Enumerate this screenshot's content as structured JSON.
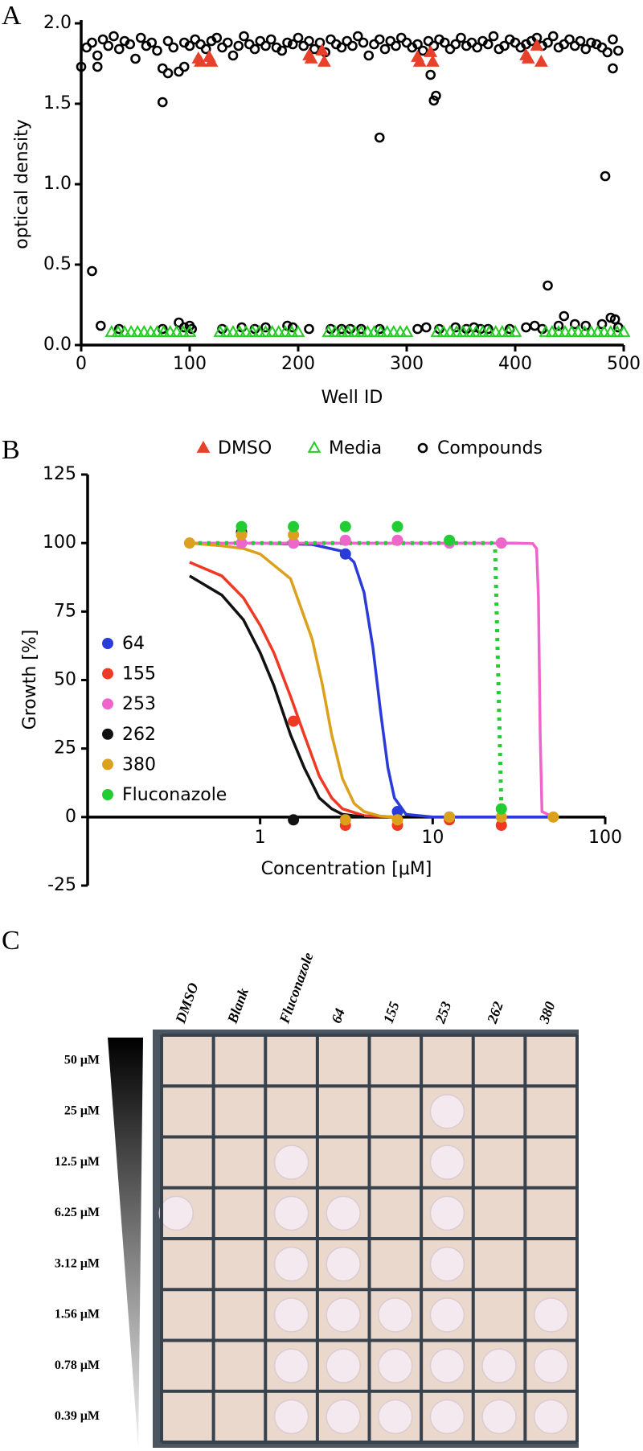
{
  "chart_data": [
    {
      "type": "scatter",
      "panel": "A",
      "xlabel": "Well ID",
      "ylabel": "optical density",
      "xlim": [
        0,
        500
      ],
      "ylim": [
        0,
        2
      ],
      "xticks": [
        0,
        100,
        200,
        300,
        400,
        500
      ],
      "yticks": [
        {
          "value": 0,
          "label": "0.0"
        },
        0.5,
        {
          "value": 1,
          "label": "1.0"
        },
        1.5,
        {
          "value": 2,
          "label": "2.0"
        }
      ],
      "series": [
        {
          "name": "DMSO",
          "color": "#e8402a",
          "marker": "triangle",
          "filled": true,
          "x": [
            108,
            110,
            118,
            120,
            210,
            212,
            222,
            224,
            310,
            312,
            322,
            324,
            410,
            412,
            420,
            424
          ],
          "values": [
            1.78,
            1.76,
            1.79,
            1.76,
            1.8,
            1.78,
            1.83,
            1.76,
            1.79,
            1.76,
            1.82,
            1.76,
            1.8,
            1.78,
            1.86,
            1.76
          ]
        },
        {
          "name": "Media",
          "color": "#22cc22",
          "marker": "triangle",
          "filled": false,
          "x": [
            28,
            34,
            40,
            46,
            52,
            58,
            64,
            70,
            76,
            82,
            88,
            94,
            100,
            128,
            134,
            140,
            146,
            152,
            158,
            164,
            170,
            176,
            182,
            188,
            194,
            200,
            228,
            234,
            240,
            246,
            252,
            258,
            264,
            270,
            276,
            282,
            288,
            294,
            300,
            328,
            334,
            340,
            346,
            352,
            358,
            364,
            370,
            376,
            382,
            388,
            394,
            400,
            428,
            434,
            440,
            446,
            452,
            458,
            464,
            470,
            476,
            482,
            488,
            494,
            500
          ],
          "values": [
            0.08,
            0.08,
            0.08,
            0.08,
            0.08,
            0.08,
            0.08,
            0.08,
            0.08,
            0.08,
            0.08,
            0.08,
            0.08,
            0.08,
            0.08,
            0.08,
            0.08,
            0.08,
            0.08,
            0.08,
            0.08,
            0.08,
            0.08,
            0.08,
            0.08,
            0.08,
            0.08,
            0.08,
            0.08,
            0.08,
            0.08,
            0.08,
            0.08,
            0.08,
            0.08,
            0.08,
            0.08,
            0.08,
            0.08,
            0.08,
            0.08,
            0.08,
            0.08,
            0.08,
            0.08,
            0.08,
            0.08,
            0.08,
            0.08,
            0.08,
            0.08,
            0.08,
            0.08,
            0.08,
            0.08,
            0.08,
            0.08,
            0.08,
            0.08,
            0.08,
            0.08,
            0.08,
            0.08,
            0.08,
            0.08
          ]
        },
        {
          "name": "Compounds",
          "color": "#000000",
          "marker": "circle",
          "filled": false,
          "x": [
            0,
            5,
            10,
            15,
            20,
            25,
            30,
            35,
            40,
            45,
            50,
            55,
            60,
            65,
            70,
            75,
            80,
            85,
            90,
            95,
            100,
            105,
            110,
            115,
            120,
            125,
            130,
            135,
            140,
            145,
            150,
            155,
            160,
            165,
            170,
            175,
            180,
            185,
            190,
            195,
            200,
            205,
            210,
            215,
            220,
            225,
            230,
            235,
            240,
            245,
            250,
            255,
            260,
            265,
            270,
            275,
            280,
            285,
            290,
            295,
            300,
            305,
            310,
            315,
            320,
            325,
            330,
            335,
            340,
            345,
            350,
            355,
            360,
            365,
            370,
            375,
            380,
            385,
            390,
            395,
            400,
            405,
            410,
            415,
            420,
            425,
            430,
            435,
            440,
            445,
            450,
            455,
            460,
            465,
            470,
            475,
            480,
            485,
            490,
            495,
            10,
            15,
            75,
            80,
            95,
            275,
            322,
            325,
            327,
            483,
            490,
            18,
            35,
            75,
            90,
            95,
            100,
            102,
            130,
            148,
            160,
            170,
            190,
            195,
            210,
            230,
            240,
            248,
            258,
            275,
            310,
            318,
            330,
            345,
            355,
            362,
            368,
            375,
            395,
            410,
            418,
            425,
            430,
            440,
            445,
            455,
            465,
            480,
            488,
            492,
            495
          ],
          "values": [
            1.73,
            1.85,
            1.88,
            1.8,
            1.9,
            1.86,
            1.92,
            1.84,
            1.89,
            1.87,
            1.78,
            1.91,
            1.86,
            1.88,
            1.83,
            1.72,
            1.89,
            1.85,
            1.7,
            1.88,
            1.86,
            1.9,
            1.87,
            1.84,
            1.89,
            1.91,
            1.85,
            1.88,
            1.8,
            1.86,
            1.92,
            1.87,
            1.84,
            1.89,
            1.86,
            1.9,
            1.85,
            1.83,
            1.88,
            1.87,
            1.91,
            1.86,
            1.89,
            1.84,
            1.88,
            1.82,
            1.9,
            1.87,
            1.85,
            1.89,
            1.86,
            1.92,
            1.88,
            1.8,
            1.87,
            1.9,
            1.84,
            1.89,
            1.86,
            1.91,
            1.88,
            1.85,
            1.87,
            1.83,
            1.89,
            1.86,
            1.9,
            1.88,
            1.84,
            1.87,
            1.91,
            1.86,
            1.88,
            1.85,
            1.89,
            1.87,
            1.92,
            1.84,
            1.86,
            1.9,
            1.88,
            1.85,
            1.87,
            1.89,
            1.91,
            1.86,
            1.88,
            1.92,
            1.85,
            1.87,
            1.9,
            1.86,
            1.89,
            1.84,
            1.88,
            1.87,
            1.85,
            1.82,
            1.9,
            1.83,
            0.46,
            1.73,
            1.51,
            1.69,
            1.73,
            1.29,
            1.68,
            1.52,
            1.55,
            1.05,
            1.72,
            0.12,
            0.1,
            0.1,
            0.14,
            0.11,
            0.12,
            0.1,
            0.1,
            0.11,
            0.1,
            0.11,
            0.12,
            0.11,
            0.1,
            0.1,
            0.1,
            0.1,
            0.1,
            0.1,
            0.1,
            0.11,
            0.1,
            0.11,
            0.1,
            0.11,
            0.1,
            0.1,
            0.1,
            0.11,
            0.12,
            0.1,
            0.37,
            0.12,
            0.18,
            0.13,
            0.12,
            0.13,
            0.17,
            0.16,
            0.11
          ]
        }
      ]
    },
    {
      "type": "dose_response",
      "panel": "B",
      "xlabel": "Concentration [μM]",
      "ylabel": "Growth [%]",
      "xscale": "log",
      "xlim": [
        0.1,
        100
      ],
      "ylim": [
        -25,
        125
      ],
      "xticks": [
        1,
        10,
        100
      ],
      "yticks": [
        -25,
        0,
        25,
        50,
        75,
        100,
        125
      ],
      "series": [
        {
          "name": "64",
          "color": "#2a3bd9",
          "x": [
            1.56,
            3.12,
            6.25,
            12.5
          ],
          "values": [
            100,
            96,
            2,
            0
          ],
          "curve_x": [
            0.39,
            1,
            2,
            3,
            3.5,
            4,
            4.5,
            5,
            5.5,
            6,
            7,
            10,
            50
          ],
          "curve_y": [
            100,
            100,
            99.5,
            97,
            93,
            82,
            62,
            38,
            18,
            7,
            1,
            0,
            0
          ]
        },
        {
          "name": "155",
          "color": "#ee3a24",
          "x": [
            1.56,
            3.12,
            6.25,
            12.5,
            25
          ],
          "values": [
            35,
            -3,
            -3,
            -1,
            -3
          ],
          "curve_x": [
            0.39,
            0.6,
            0.8,
            1,
            1.2,
            1.5,
            1.8,
            2.2,
            2.6,
            3,
            4,
            6
          ],
          "curve_y": [
            93,
            88,
            80,
            70,
            60,
            44,
            30,
            15,
            7,
            3,
            0.5,
            0
          ]
        },
        {
          "name": "253",
          "color": "#ee66cc",
          "x": [
            0.78,
            1.56,
            3.12,
            6.25,
            12.5,
            25
          ],
          "values": [
            100,
            100,
            101,
            101,
            100,
            100
          ],
          "curve_x": [
            0.39,
            10,
            30,
            38,
            40,
            41,
            42,
            43,
            50
          ],
          "curve_y": [
            100,
            100,
            100,
            99.8,
            98,
            80,
            30,
            2,
            0
          ]
        },
        {
          "name": "262",
          "color": "#111111",
          "x": [
            0.78,
            1.56
          ],
          "values": [
            104,
            -1
          ],
          "curve_x": [
            0.39,
            0.6,
            0.8,
            1,
            1.2,
            1.5,
            1.8,
            2.2,
            2.6,
            3,
            4
          ],
          "curve_y": [
            88,
            81,
            72,
            60,
            48,
            30,
            18,
            7,
            3,
            1,
            0
          ]
        },
        {
          "name": "380",
          "color": "#dca11c",
          "x": [
            0.39,
            0.78,
            1.56,
            3.12,
            6.25,
            12.5,
            25,
            50
          ],
          "values": [
            100,
            103,
            103,
            -1,
            -1,
            0,
            0,
            0
          ],
          "curve_x": [
            0.39,
            0.6,
            0.8,
            1,
            1.5,
            2,
            2.3,
            2.6,
            3,
            3.5,
            4,
            5,
            6
          ],
          "curve_y": [
            100,
            99,
            98,
            96,
            87,
            65,
            48,
            30,
            14,
            5,
            2,
            0.3,
            0
          ]
        },
        {
          "name": "Fluconazole",
          "color": "#22cc33",
          "dotted": true,
          "x": [
            0.78,
            1.56,
            3.12,
            6.25,
            12.5,
            25
          ],
          "values": [
            106,
            106,
            106,
            106,
            101,
            3
          ],
          "curve_x": [
            0.39,
            22,
            23,
            24,
            25,
            26
          ],
          "curve_y": [
            100,
            100,
            98,
            50,
            3,
            0
          ]
        }
      ]
    }
  ],
  "plate": {
    "panel": "C",
    "columns": [
      "DMSO",
      "Blank",
      "Fluconazole",
      "64",
      "155",
      "253",
      "262",
      "380"
    ],
    "rows": [
      "50 μM",
      "25 μM",
      "12.5 μM",
      "6.25 μM",
      "3.12 μM",
      "1.56 μM",
      "0.78 μM",
      "0.39 μM"
    ]
  }
}
